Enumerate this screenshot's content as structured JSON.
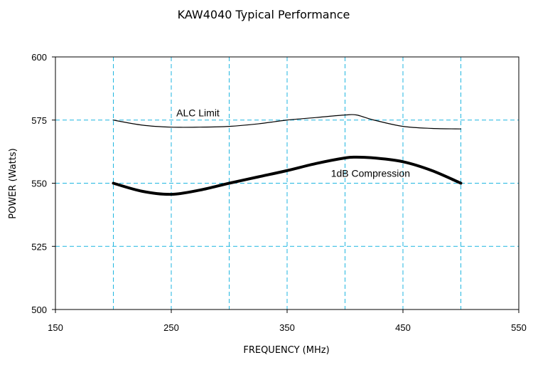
{
  "chart_data": {
    "type": "line",
    "title": "KAW4040 Typical Performance",
    "xlabel": "FREQUENCY (MHz)",
    "ylabel": "POWER (Watts)",
    "xlim": [
      150,
      550
    ],
    "ylim": [
      500,
      600
    ],
    "x_ticks": [
      150,
      250,
      350,
      450,
      550
    ],
    "y_ticks": [
      500,
      525,
      550,
      575,
      600
    ],
    "x_grid": [
      200,
      250,
      300,
      350,
      400,
      450,
      500
    ],
    "y_grid": [
      525,
      550,
      575
    ],
    "grid": true,
    "grid_style": "dashed",
    "grid_color": "#1fb6e0",
    "series": [
      {
        "name": "ALC Limit",
        "color": "#000000",
        "line_weight": "thin",
        "x": [
          200,
          225,
          250,
          275,
          300,
          325,
          350,
          375,
          400,
          410,
          425,
          450,
          475,
          500
        ],
        "y": [
          575,
          573,
          572.2,
          572.2,
          572.5,
          573.5,
          575,
          576,
          577,
          577,
          575,
          572.5,
          571.7,
          571.5
        ]
      },
      {
        "name": "1dB Compression",
        "color": "#000000",
        "line_weight": "thick",
        "x": [
          200,
          225,
          250,
          275,
          300,
          325,
          350,
          375,
          400,
          410,
          425,
          450,
          475,
          500
        ],
        "y": [
          550,
          546.8,
          545.6,
          547.3,
          550,
          552.5,
          555,
          557.8,
          560,
          560.3,
          560,
          558.5,
          555,
          550
        ]
      }
    ],
    "annotations": [
      {
        "text": "ALC Limit",
        "x": 273,
        "y": 576.5
      },
      {
        "text": "1dB Compression",
        "x": 422,
        "y": 552.5
      }
    ]
  }
}
